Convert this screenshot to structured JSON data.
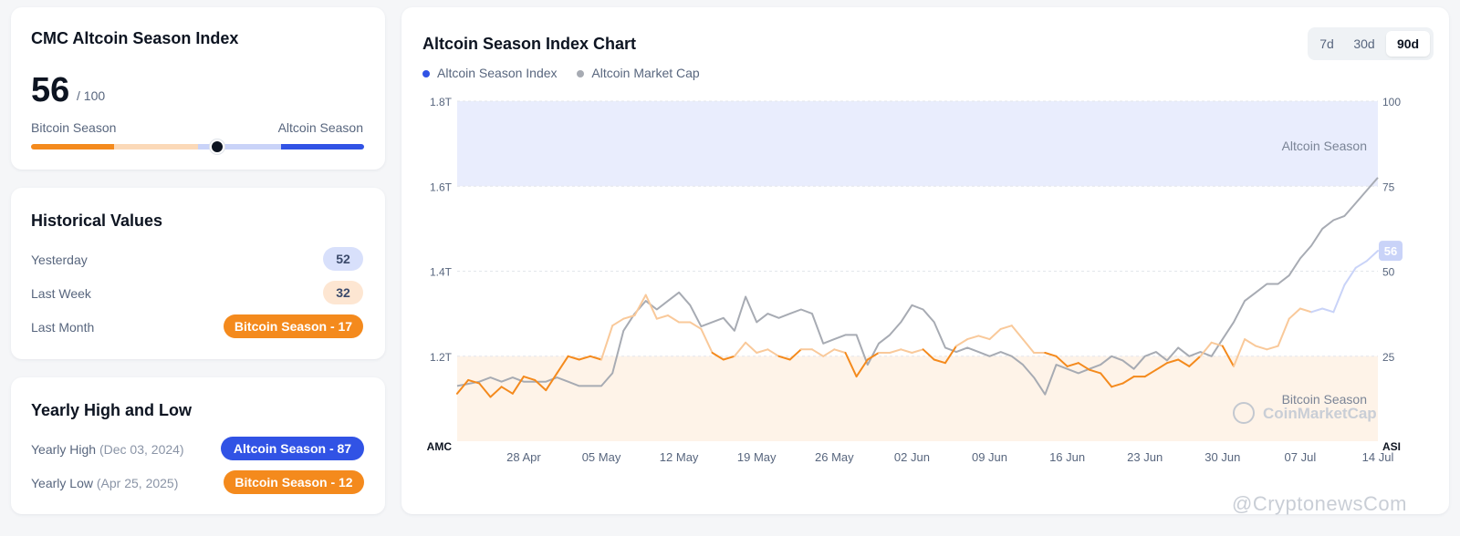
{
  "index_card": {
    "title": "CMC Altcoin Season Index",
    "value": "56",
    "max": "/ 100",
    "left_label": "Bitcoin Season",
    "right_label": "Altcoin Season",
    "level": 0.56
  },
  "historical": {
    "title": "Historical Values",
    "rows": [
      {
        "label": "Yesterday",
        "value": "52"
      },
      {
        "label": "Last Week",
        "value": "32"
      },
      {
        "label": "Last Month",
        "value": "Bitcoin Season - 17"
      }
    ]
  },
  "yearly": {
    "title": "Yearly High and Low",
    "high_label": "Yearly High",
    "high_date": "(Dec 03, 2024)",
    "high_value": "Altcoin Season - 87",
    "low_label": "Yearly Low",
    "low_date": "(Apr 25, 2025)",
    "low_value": "Bitcoin Season - 12"
  },
  "chart_header": {
    "title": "Altcoin Season Index Chart",
    "tabs": [
      "7d",
      "30d",
      "90d"
    ],
    "active_tab": "90d"
  },
  "watermark": "@CryptonewsCom",
  "colors": {
    "asi_line": "#f48a1d",
    "asi_line_light": "#f9c99a",
    "market_cap_line": "#a7abb3",
    "altcoin_zone": "#e9edfd",
    "bitcoin_zone": "#fef3e8",
    "legend_index": "#3153e5",
    "legend_market_cap": "#a7abb3"
  },
  "chart_data": {
    "type": "line",
    "x_ticks": [
      "28 Apr",
      "05 May",
      "12 May",
      "19 May",
      "26 May",
      "02 Jun",
      "09 Jun",
      "16 Jun",
      "23 Jun",
      "30 Jun",
      "07 Jul",
      "14 Jul"
    ],
    "x_range_days": [
      0,
      83
    ],
    "left_axis": {
      "label": "AMC",
      "ticks": [
        "1.8T",
        "1.6T",
        "1.4T",
        "1.2T"
      ],
      "range": [
        1.0,
        1.8
      ],
      "unit": "T"
    },
    "right_axis": {
      "label": "ASI",
      "ticks": [
        "100",
        "75",
        "50",
        "25"
      ],
      "range": [
        0,
        100
      ]
    },
    "zones": [
      {
        "label": "Altcoin Season",
        "from": 75,
        "to": 100
      },
      {
        "label": "Bitcoin Season",
        "from": 0,
        "to": 25
      }
    ],
    "current_value_label": "56",
    "series": [
      {
        "name": "Altcoin Season Index",
        "axis": "right",
        "points": [
          [
            0,
            14
          ],
          [
            1,
            18
          ],
          [
            2,
            17
          ],
          [
            3,
            13
          ],
          [
            4,
            16
          ],
          [
            5,
            14
          ],
          [
            6,
            19
          ],
          [
            7,
            18
          ],
          [
            8,
            15
          ],
          [
            9,
            20
          ],
          [
            10,
            25
          ],
          [
            11,
            24
          ],
          [
            12,
            25
          ],
          [
            13,
            24
          ],
          [
            14,
            34
          ],
          [
            15,
            36
          ],
          [
            16,
            37
          ],
          [
            17,
            43
          ],
          [
            18,
            36
          ],
          [
            19,
            37
          ],
          [
            20,
            35
          ],
          [
            21,
            35
          ],
          [
            22,
            33
          ],
          [
            23,
            26
          ],
          [
            24,
            24
          ],
          [
            25,
            25
          ],
          [
            26,
            29
          ],
          [
            27,
            26
          ],
          [
            28,
            27
          ],
          [
            29,
            25
          ],
          [
            30,
            24
          ],
          [
            31,
            27
          ],
          [
            32,
            27
          ],
          [
            33,
            25
          ],
          [
            34,
            27
          ],
          [
            35,
            26
          ],
          [
            36,
            19
          ],
          [
            37,
            24
          ],
          [
            38,
            26
          ],
          [
            39,
            26
          ],
          [
            40,
            27
          ],
          [
            41,
            26
          ],
          [
            42,
            27
          ],
          [
            43,
            24
          ],
          [
            44,
            23
          ],
          [
            45,
            28
          ],
          [
            46,
            30
          ],
          [
            47,
            31
          ],
          [
            48,
            30
          ],
          [
            49,
            33
          ],
          [
            50,
            34
          ],
          [
            51,
            30
          ],
          [
            52,
            26
          ],
          [
            53,
            26
          ],
          [
            54,
            25
          ],
          [
            55,
            22
          ],
          [
            56,
            23
          ],
          [
            57,
            21
          ],
          [
            58,
            20
          ],
          [
            59,
            16
          ],
          [
            60,
            17
          ],
          [
            61,
            19
          ],
          [
            62,
            19
          ],
          [
            63,
            21
          ],
          [
            64,
            23
          ],
          [
            65,
            24
          ],
          [
            66,
            22
          ],
          [
            67,
            25
          ],
          [
            68,
            29
          ],
          [
            69,
            28
          ],
          [
            70,
            22
          ],
          [
            71,
            30
          ],
          [
            72,
            28
          ],
          [
            73,
            27
          ],
          [
            74,
            28
          ],
          [
            75,
            36
          ],
          [
            76,
            39
          ],
          [
            77,
            38
          ],
          [
            78,
            39
          ],
          [
            79,
            38
          ],
          [
            80,
            46
          ],
          [
            81,
            51
          ],
          [
            82,
            53
          ],
          [
            83,
            56
          ]
        ]
      },
      {
        "name": "Altcoin Market Cap",
        "axis": "left",
        "points": [
          [
            0,
            1.13
          ],
          [
            2,
            1.14
          ],
          [
            3,
            1.15
          ],
          [
            4,
            1.14
          ],
          [
            5,
            1.15
          ],
          [
            6,
            1.14
          ],
          [
            8,
            1.14
          ],
          [
            9,
            1.15
          ],
          [
            10,
            1.14
          ],
          [
            11,
            1.13
          ],
          [
            13,
            1.13
          ],
          [
            14,
            1.16
          ],
          [
            15,
            1.26
          ],
          [
            16,
            1.3
          ],
          [
            17,
            1.33
          ],
          [
            18,
            1.31
          ],
          [
            19,
            1.33
          ],
          [
            20,
            1.35
          ],
          [
            21,
            1.32
          ],
          [
            22,
            1.27
          ],
          [
            23,
            1.28
          ],
          [
            24,
            1.29
          ],
          [
            25,
            1.26
          ],
          [
            26,
            1.34
          ],
          [
            27,
            1.28
          ],
          [
            28,
            1.3
          ],
          [
            29,
            1.29
          ],
          [
            30,
            1.3
          ],
          [
            31,
            1.31
          ],
          [
            32,
            1.3
          ],
          [
            33,
            1.23
          ],
          [
            34,
            1.24
          ],
          [
            35,
            1.25
          ],
          [
            36,
            1.25
          ],
          [
            37,
            1.18
          ],
          [
            38,
            1.23
          ],
          [
            39,
            1.25
          ],
          [
            40,
            1.28
          ],
          [
            41,
            1.32
          ],
          [
            42,
            1.31
          ],
          [
            43,
            1.28
          ],
          [
            44,
            1.22
          ],
          [
            45,
            1.21
          ],
          [
            46,
            1.22
          ],
          [
            47,
            1.21
          ],
          [
            48,
            1.2
          ],
          [
            49,
            1.21
          ],
          [
            50,
            1.2
          ],
          [
            51,
            1.18
          ],
          [
            52,
            1.15
          ],
          [
            53,
            1.11
          ],
          [
            54,
            1.18
          ],
          [
            55,
            1.17
          ],
          [
            56,
            1.16
          ],
          [
            57,
            1.17
          ],
          [
            58,
            1.18
          ],
          [
            59,
            1.2
          ],
          [
            60,
            1.19
          ],
          [
            61,
            1.17
          ],
          [
            62,
            1.2
          ],
          [
            63,
            1.21
          ],
          [
            64,
            1.19
          ],
          [
            65,
            1.22
          ],
          [
            66,
            1.2
          ],
          [
            67,
            1.21
          ],
          [
            68,
            1.2
          ],
          [
            69,
            1.24
          ],
          [
            70,
            1.28
          ],
          [
            71,
            1.33
          ],
          [
            72,
            1.35
          ],
          [
            73,
            1.37
          ],
          [
            74,
            1.37
          ],
          [
            75,
            1.39
          ],
          [
            76,
            1.43
          ],
          [
            77,
            1.46
          ],
          [
            78,
            1.5
          ],
          [
            79,
            1.52
          ],
          [
            80,
            1.53
          ],
          [
            81,
            1.56
          ],
          [
            82,
            1.59
          ],
          [
            83,
            1.62
          ]
        ]
      }
    ]
  }
}
